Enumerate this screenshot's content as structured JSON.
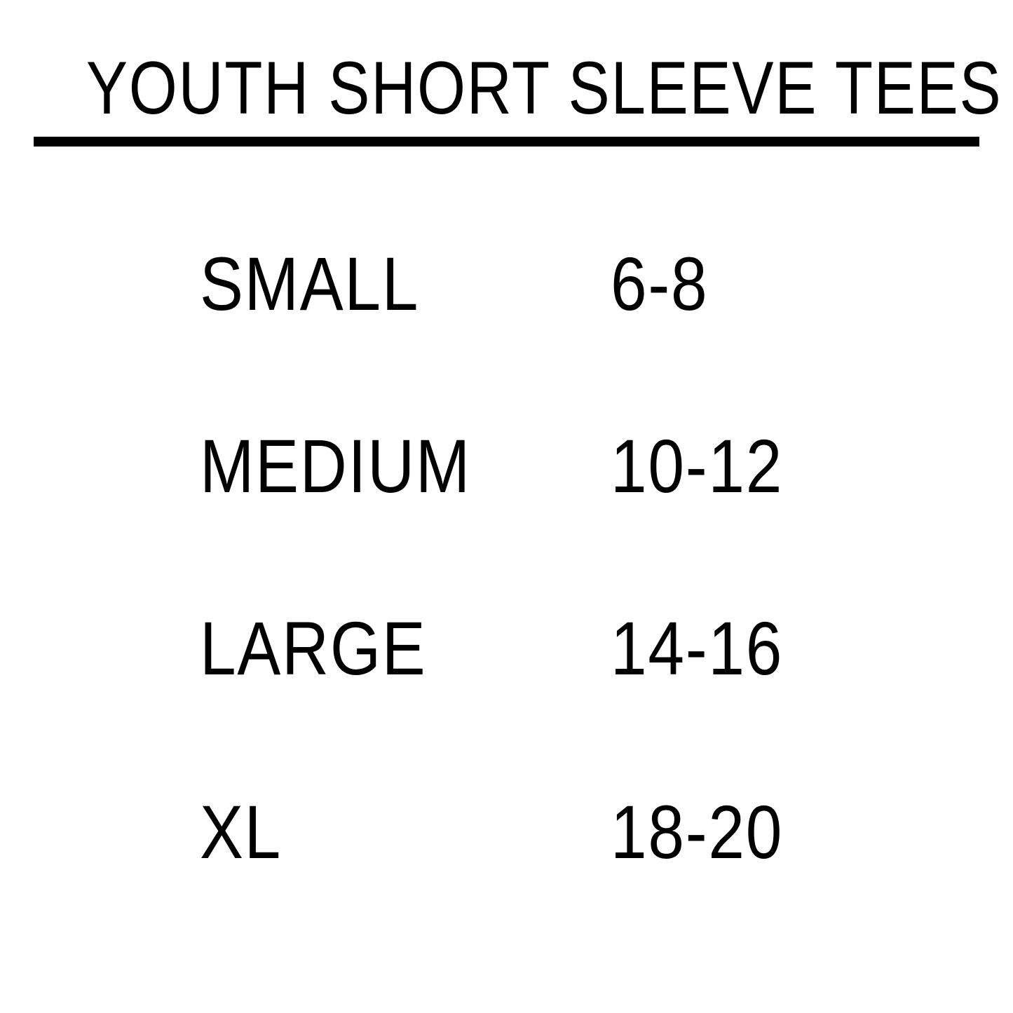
{
  "title": "YOUTH SHORT SLEEVE TEES",
  "rows": [
    {
      "size": "SMALL",
      "ages": "6-8"
    },
    {
      "size": "MEDIUM",
      "ages": "10-12"
    },
    {
      "size": "LARGE",
      "ages": "14-16"
    },
    {
      "size": "XL",
      "ages": "18-20"
    }
  ]
}
